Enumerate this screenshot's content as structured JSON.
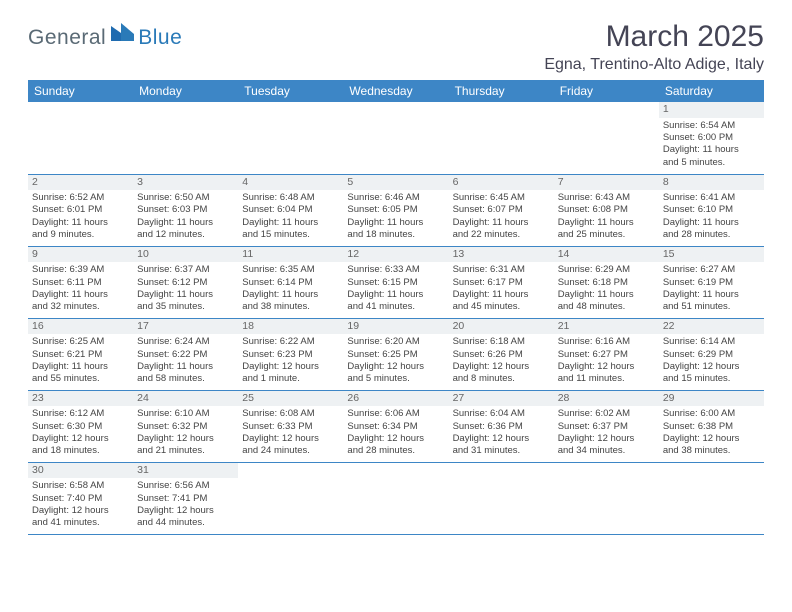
{
  "logo": {
    "part1": "General",
    "part2": "Blue"
  },
  "title": "March 2025",
  "location": "Egna, Trentino-Alto Adige, Italy",
  "colors": {
    "header_bg": "#3d86c6",
    "header_text": "#ffffff",
    "border": "#3d86c6",
    "daynum_bg": "#eef1f3",
    "logo_gray": "#5a6a75",
    "logo_blue": "#2a7ab8"
  },
  "daysOfWeek": [
    "Sunday",
    "Monday",
    "Tuesday",
    "Wednesday",
    "Thursday",
    "Friday",
    "Saturday"
  ],
  "weeks": [
    [
      null,
      null,
      null,
      null,
      null,
      null,
      {
        "n": "1",
        "sr": "Sunrise: 6:54 AM",
        "ss": "Sunset: 6:00 PM",
        "d1": "Daylight: 11 hours",
        "d2": "and 5 minutes."
      }
    ],
    [
      {
        "n": "2",
        "sr": "Sunrise: 6:52 AM",
        "ss": "Sunset: 6:01 PM",
        "d1": "Daylight: 11 hours",
        "d2": "and 9 minutes."
      },
      {
        "n": "3",
        "sr": "Sunrise: 6:50 AM",
        "ss": "Sunset: 6:03 PM",
        "d1": "Daylight: 11 hours",
        "d2": "and 12 minutes."
      },
      {
        "n": "4",
        "sr": "Sunrise: 6:48 AM",
        "ss": "Sunset: 6:04 PM",
        "d1": "Daylight: 11 hours",
        "d2": "and 15 minutes."
      },
      {
        "n": "5",
        "sr": "Sunrise: 6:46 AM",
        "ss": "Sunset: 6:05 PM",
        "d1": "Daylight: 11 hours",
        "d2": "and 18 minutes."
      },
      {
        "n": "6",
        "sr": "Sunrise: 6:45 AM",
        "ss": "Sunset: 6:07 PM",
        "d1": "Daylight: 11 hours",
        "d2": "and 22 minutes."
      },
      {
        "n": "7",
        "sr": "Sunrise: 6:43 AM",
        "ss": "Sunset: 6:08 PM",
        "d1": "Daylight: 11 hours",
        "d2": "and 25 minutes."
      },
      {
        "n": "8",
        "sr": "Sunrise: 6:41 AM",
        "ss": "Sunset: 6:10 PM",
        "d1": "Daylight: 11 hours",
        "d2": "and 28 minutes."
      }
    ],
    [
      {
        "n": "9",
        "sr": "Sunrise: 6:39 AM",
        "ss": "Sunset: 6:11 PM",
        "d1": "Daylight: 11 hours",
        "d2": "and 32 minutes."
      },
      {
        "n": "10",
        "sr": "Sunrise: 6:37 AM",
        "ss": "Sunset: 6:12 PM",
        "d1": "Daylight: 11 hours",
        "d2": "and 35 minutes."
      },
      {
        "n": "11",
        "sr": "Sunrise: 6:35 AM",
        "ss": "Sunset: 6:14 PM",
        "d1": "Daylight: 11 hours",
        "d2": "and 38 minutes."
      },
      {
        "n": "12",
        "sr": "Sunrise: 6:33 AM",
        "ss": "Sunset: 6:15 PM",
        "d1": "Daylight: 11 hours",
        "d2": "and 41 minutes."
      },
      {
        "n": "13",
        "sr": "Sunrise: 6:31 AM",
        "ss": "Sunset: 6:17 PM",
        "d1": "Daylight: 11 hours",
        "d2": "and 45 minutes."
      },
      {
        "n": "14",
        "sr": "Sunrise: 6:29 AM",
        "ss": "Sunset: 6:18 PM",
        "d1": "Daylight: 11 hours",
        "d2": "and 48 minutes."
      },
      {
        "n": "15",
        "sr": "Sunrise: 6:27 AM",
        "ss": "Sunset: 6:19 PM",
        "d1": "Daylight: 11 hours",
        "d2": "and 51 minutes."
      }
    ],
    [
      {
        "n": "16",
        "sr": "Sunrise: 6:25 AM",
        "ss": "Sunset: 6:21 PM",
        "d1": "Daylight: 11 hours",
        "d2": "and 55 minutes."
      },
      {
        "n": "17",
        "sr": "Sunrise: 6:24 AM",
        "ss": "Sunset: 6:22 PM",
        "d1": "Daylight: 11 hours",
        "d2": "and 58 minutes."
      },
      {
        "n": "18",
        "sr": "Sunrise: 6:22 AM",
        "ss": "Sunset: 6:23 PM",
        "d1": "Daylight: 12 hours",
        "d2": "and 1 minute."
      },
      {
        "n": "19",
        "sr": "Sunrise: 6:20 AM",
        "ss": "Sunset: 6:25 PM",
        "d1": "Daylight: 12 hours",
        "d2": "and 5 minutes."
      },
      {
        "n": "20",
        "sr": "Sunrise: 6:18 AM",
        "ss": "Sunset: 6:26 PM",
        "d1": "Daylight: 12 hours",
        "d2": "and 8 minutes."
      },
      {
        "n": "21",
        "sr": "Sunrise: 6:16 AM",
        "ss": "Sunset: 6:27 PM",
        "d1": "Daylight: 12 hours",
        "d2": "and 11 minutes."
      },
      {
        "n": "22",
        "sr": "Sunrise: 6:14 AM",
        "ss": "Sunset: 6:29 PM",
        "d1": "Daylight: 12 hours",
        "d2": "and 15 minutes."
      }
    ],
    [
      {
        "n": "23",
        "sr": "Sunrise: 6:12 AM",
        "ss": "Sunset: 6:30 PM",
        "d1": "Daylight: 12 hours",
        "d2": "and 18 minutes."
      },
      {
        "n": "24",
        "sr": "Sunrise: 6:10 AM",
        "ss": "Sunset: 6:32 PM",
        "d1": "Daylight: 12 hours",
        "d2": "and 21 minutes."
      },
      {
        "n": "25",
        "sr": "Sunrise: 6:08 AM",
        "ss": "Sunset: 6:33 PM",
        "d1": "Daylight: 12 hours",
        "d2": "and 24 minutes."
      },
      {
        "n": "26",
        "sr": "Sunrise: 6:06 AM",
        "ss": "Sunset: 6:34 PM",
        "d1": "Daylight: 12 hours",
        "d2": "and 28 minutes."
      },
      {
        "n": "27",
        "sr": "Sunrise: 6:04 AM",
        "ss": "Sunset: 6:36 PM",
        "d1": "Daylight: 12 hours",
        "d2": "and 31 minutes."
      },
      {
        "n": "28",
        "sr": "Sunrise: 6:02 AM",
        "ss": "Sunset: 6:37 PM",
        "d1": "Daylight: 12 hours",
        "d2": "and 34 minutes."
      },
      {
        "n": "29",
        "sr": "Sunrise: 6:00 AM",
        "ss": "Sunset: 6:38 PM",
        "d1": "Daylight: 12 hours",
        "d2": "and 38 minutes."
      }
    ],
    [
      {
        "n": "30",
        "sr": "Sunrise: 6:58 AM",
        "ss": "Sunset: 7:40 PM",
        "d1": "Daylight: 12 hours",
        "d2": "and 41 minutes."
      },
      {
        "n": "31",
        "sr": "Sunrise: 6:56 AM",
        "ss": "Sunset: 7:41 PM",
        "d1": "Daylight: 12 hours",
        "d2": "and 44 minutes."
      },
      null,
      null,
      null,
      null,
      null
    ]
  ]
}
